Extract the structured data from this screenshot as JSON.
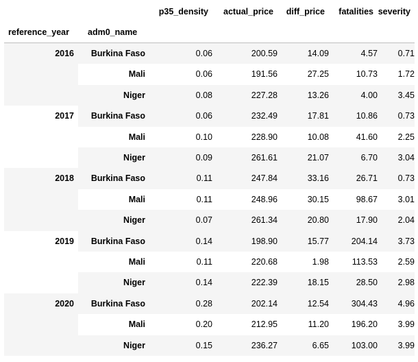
{
  "columns": {
    "index_names": [
      "reference_year",
      "adm0_name"
    ],
    "values": [
      "p35_density",
      "actual_price",
      "diff_price",
      "fatalities",
      "severity"
    ]
  },
  "years": [
    {
      "year": "2016",
      "rows": [
        {
          "country": "Burkina Faso",
          "values": [
            "0.06",
            "200.59",
            "14.09",
            "4.57",
            "0.71"
          ]
        },
        {
          "country": "Mali",
          "values": [
            "0.06",
            "191.56",
            "27.25",
            "10.73",
            "1.72"
          ]
        },
        {
          "country": "Niger",
          "values": [
            "0.08",
            "227.28",
            "13.26",
            "4.00",
            "3.45"
          ]
        }
      ]
    },
    {
      "year": "2017",
      "rows": [
        {
          "country": "Burkina Faso",
          "values": [
            "0.06",
            "232.49",
            "17.81",
            "10.86",
            "0.73"
          ]
        },
        {
          "country": "Mali",
          "values": [
            "0.10",
            "228.90",
            "10.08",
            "41.60",
            "2.25"
          ]
        },
        {
          "country": "Niger",
          "values": [
            "0.09",
            "261.61",
            "21.07",
            "6.70",
            "3.04"
          ]
        }
      ]
    },
    {
      "year": "2018",
      "rows": [
        {
          "country": "Burkina Faso",
          "values": [
            "0.11",
            "247.84",
            "33.16",
            "26.71",
            "0.73"
          ]
        },
        {
          "country": "Mali",
          "values": [
            "0.11",
            "248.96",
            "30.15",
            "98.67",
            "3.01"
          ]
        },
        {
          "country": "Niger",
          "values": [
            "0.07",
            "261.34",
            "20.80",
            "17.90",
            "2.04"
          ]
        }
      ]
    },
    {
      "year": "2019",
      "rows": [
        {
          "country": "Burkina Faso",
          "values": [
            "0.14",
            "198.90",
            "15.77",
            "204.14",
            "3.73"
          ]
        },
        {
          "country": "Mali",
          "values": [
            "0.11",
            "220.68",
            "1.98",
            "113.53",
            "2.59"
          ]
        },
        {
          "country": "Niger",
          "values": [
            "0.14",
            "222.39",
            "18.15",
            "28.50",
            "2.98"
          ]
        }
      ]
    },
    {
      "year": "2020",
      "rows": [
        {
          "country": "Burkina Faso",
          "values": [
            "0.28",
            "202.14",
            "12.54",
            "304.43",
            "4.96"
          ]
        },
        {
          "country": "Mali",
          "values": [
            "0.20",
            "212.95",
            "11.20",
            "196.20",
            "3.99"
          ]
        },
        {
          "country": "Niger",
          "values": [
            "0.15",
            "236.27",
            "6.65",
            "103.00",
            "3.99"
          ]
        }
      ]
    }
  ]
}
